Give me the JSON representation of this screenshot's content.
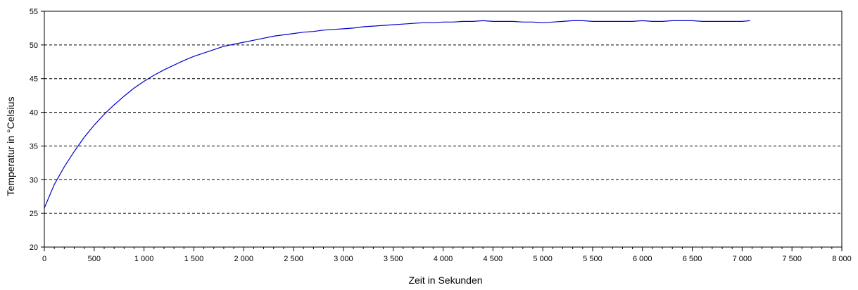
{
  "chart_data": {
    "type": "line",
    "title": "",
    "xlabel": "Zeit in Sekunden",
    "ylabel": "Temperatur in °Celsius",
    "xlim": [
      0,
      8000
    ],
    "ylim": [
      20,
      55
    ],
    "x_ticks": [
      0,
      500,
      1000,
      1500,
      2000,
      2500,
      3000,
      3500,
      4000,
      4500,
      5000,
      5500,
      6000,
      6500,
      7000,
      7500,
      8000
    ],
    "x_tick_labels": [
      "0",
      "500",
      "1 000",
      "1 500",
      "2 000",
      "2 500",
      "3 000",
      "3 500",
      "4 000",
      "4 500",
      "5 000",
      "5 500",
      "6 000",
      "6 500",
      "7 000",
      "7 500",
      "8 000"
    ],
    "y_ticks": [
      20,
      25,
      30,
      35,
      40,
      45,
      50,
      55
    ],
    "y_tick_labels": [
      "20",
      "25",
      "30",
      "35",
      "40",
      "45",
      "50",
      "55"
    ],
    "grid": "horizontal-dashed",
    "legend": "none",
    "series": [
      {
        "color": "#0000cc",
        "x": [
          0,
          100,
          200,
          300,
          400,
          500,
          600,
          700,
          800,
          900,
          1000,
          1100,
          1200,
          1300,
          1400,
          1500,
          1600,
          1700,
          1800,
          1900,
          2000,
          2100,
          2200,
          2300,
          2400,
          2500,
          2600,
          2700,
          2800,
          2900,
          3000,
          3100,
          3200,
          3300,
          3400,
          3500,
          3600,
          3700,
          3800,
          3900,
          4000,
          4100,
          4200,
          4300,
          4400,
          4500,
          4600,
          4700,
          4800,
          4900,
          5000,
          5100,
          5200,
          5300,
          5400,
          5500,
          5600,
          5700,
          5800,
          5900,
          6000,
          6100,
          6200,
          6300,
          6400,
          6500,
          6600,
          6700,
          6800,
          6900,
          7000,
          7080
        ],
        "y": [
          25.8,
          29.3,
          31.9,
          34.2,
          36.3,
          38.1,
          39.7,
          41.1,
          42.4,
          43.6,
          44.6,
          45.5,
          46.3,
          47.0,
          47.7,
          48.3,
          48.8,
          49.3,
          49.8,
          50.1,
          50.4,
          50.7,
          51.0,
          51.3,
          51.5,
          51.7,
          51.9,
          52.0,
          52.2,
          52.3,
          52.4,
          52.5,
          52.7,
          52.8,
          52.9,
          53.0,
          53.1,
          53.2,
          53.3,
          53.3,
          53.4,
          53.4,
          53.5,
          53.5,
          53.6,
          53.5,
          53.5,
          53.5,
          53.4,
          53.4,
          53.3,
          53.4,
          53.5,
          53.6,
          53.6,
          53.5,
          53.5,
          53.5,
          53.5,
          53.5,
          53.6,
          53.5,
          53.5,
          53.6,
          53.6,
          53.6,
          53.5,
          53.5,
          53.5,
          53.5,
          53.5,
          53.6
        ]
      }
    ]
  }
}
